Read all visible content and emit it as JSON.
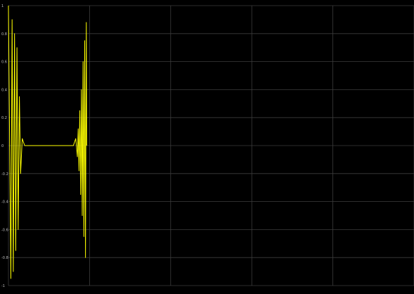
{
  "scope": {
    "background_color": "#000000",
    "trace_color": "#ffff00",
    "grid_color": "#3c3c3c",
    "axis_labels": {
      "y": [
        "1",
        "0.8",
        "0.6",
        "0.4",
        "0.2",
        "0",
        "-0.2",
        "-0.4",
        "-0.6",
        "-0.8",
        "-1"
      ]
    }
  },
  "chart_data": {
    "type": "line",
    "title": "",
    "xlabel": "",
    "ylabel": "",
    "grid": true,
    "ylim": [
      -1,
      1
    ],
    "xlim": [
      0,
      10
    ],
    "y_ticks": [
      1,
      0.8,
      0.6,
      0.4,
      0.2,
      0,
      -0.2,
      -0.4,
      -0.6,
      -0.8,
      -1
    ],
    "x_ticks": [
      0,
      2,
      4,
      6,
      8,
      10
    ],
    "series": [
      {
        "points": [
          [
            0.0,
            1.0
          ],
          [
            0.03,
            0.0
          ],
          [
            0.06,
            -0.95
          ],
          [
            0.09,
            0.9
          ],
          [
            0.12,
            -0.9
          ],
          [
            0.15,
            0.8
          ],
          [
            0.18,
            -0.75
          ],
          [
            0.21,
            0.7
          ],
          [
            0.24,
            -0.6
          ],
          [
            0.27,
            0.35
          ],
          [
            0.3,
            -0.2
          ],
          [
            0.34,
            0.05
          ],
          [
            0.4,
            0.0
          ],
          [
            1.6,
            0.0
          ],
          [
            1.66,
            0.05
          ],
          [
            1.7,
            -0.08
          ],
          [
            1.72,
            0.12
          ],
          [
            1.74,
            -0.18
          ],
          [
            1.76,
            0.25
          ],
          [
            1.78,
            -0.35
          ],
          [
            1.8,
            0.4
          ],
          [
            1.82,
            -0.5
          ],
          [
            1.84,
            0.6
          ],
          [
            1.86,
            -0.65
          ],
          [
            1.88,
            0.75
          ],
          [
            1.9,
            -0.8
          ],
          [
            1.92,
            0.88
          ],
          [
            1.93,
            0.0
          ]
        ]
      }
    ]
  }
}
